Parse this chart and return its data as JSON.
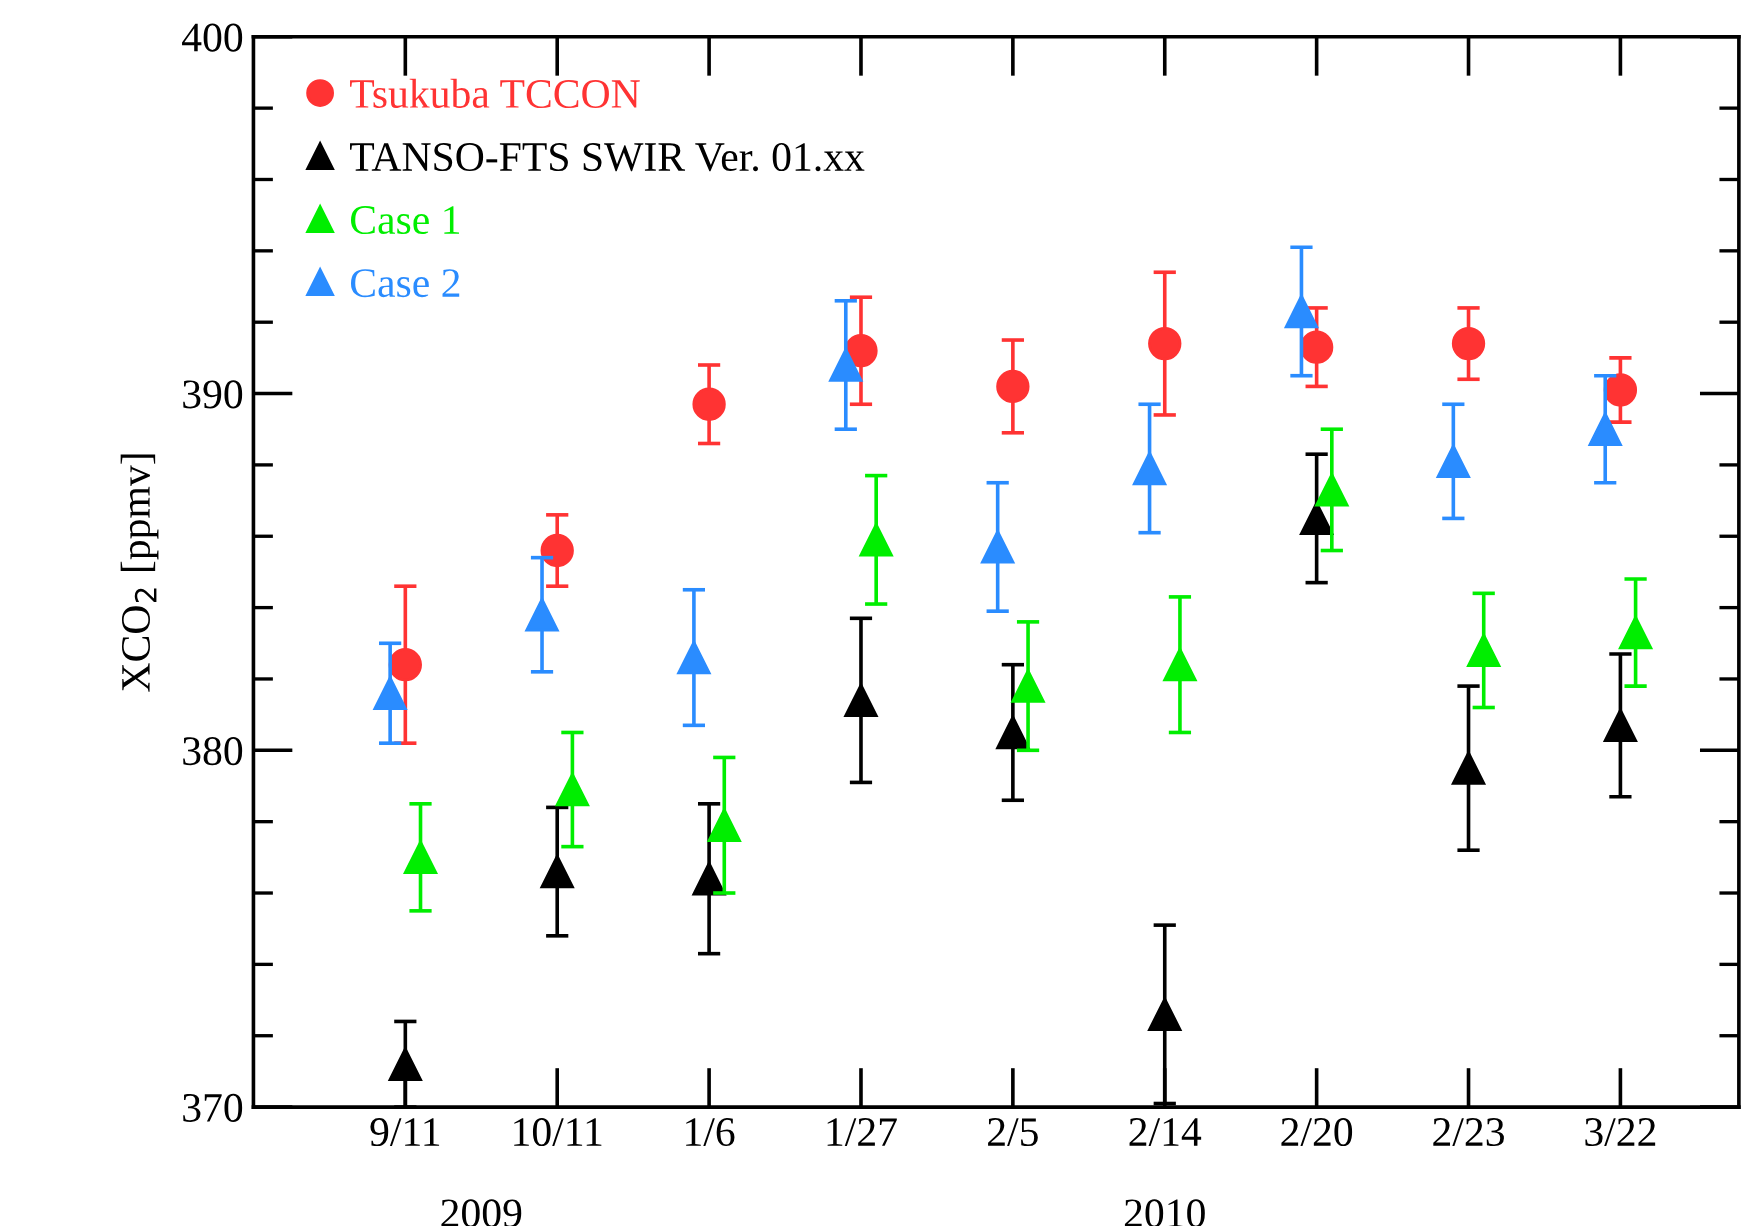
{
  "chart_data": {
    "type": "scatter",
    "ylabel": "XCO$_{2}$ [ppmv]",
    "categories": [
      "9/11",
      "10/11",
      "1/6",
      "1/27",
      "2/5",
      "2/14",
      "2/20",
      "2/23",
      "3/22"
    ],
    "series": [
      {
        "name": "Tsukuba TCCON",
        "color": "#ff3333",
        "marker": "circle",
        "values": [
          382.4,
          385.6,
          389.7,
          391.2,
          390.2,
          391.4,
          391.3,
          391.4,
          390.1
        ],
        "errors": [
          2.2,
          1.0,
          1.1,
          1.5,
          1.3,
          2.0,
          1.1,
          1.0,
          0.9
        ]
      },
      {
        "name": "TANSO-FTS SWIR Ver. 01.xx",
        "color": "#000000",
        "marker": "triangle",
        "values": [
          371.2,
          376.6,
          376.4,
          381.4,
          380.5,
          372.6,
          386.5,
          379.5,
          380.7
        ],
        "errors": [
          1.2,
          1.8,
          2.1,
          2.3,
          1.9,
          2.5,
          1.8,
          2.3,
          2.0
        ]
      },
      {
        "name": "Case 1",
        "color": "#00ee00",
        "marker": "triangle",
        "values": [
          377.0,
          378.9,
          377.9,
          385.9,
          381.8,
          382.4,
          387.3,
          382.8,
          383.3
        ],
        "errors": [
          1.5,
          1.6,
          1.9,
          1.8,
          1.8,
          1.9,
          1.7,
          1.6,
          1.5
        ]
      },
      {
        "name": "Case 2",
        "color": "#2a8cff",
        "marker": "triangle",
        "values": [
          381.6,
          383.8,
          382.6,
          390.8,
          385.7,
          387.9,
          392.3,
          388.1,
          389.0
        ],
        "errors": [
          1.4,
          1.6,
          1.9,
          1.8,
          1.8,
          1.8,
          1.8,
          1.6,
          1.5
        ]
      }
    ],
    "ylim": [
      370,
      400
    ],
    "yticks": [
      370,
      {
        "value": 372,
        "label": null
      },
      {
        "value": 374,
        "label": null
      },
      {
        "value": 376,
        "label": null
      },
      {
        "value": 378,
        "label": null
      },
      380,
      {
        "value": 382,
        "label": null
      },
      {
        "value": 384,
        "label": null
      },
      {
        "value": 386,
        "label": null
      },
      {
        "value": 388,
        "label": null
      },
      390,
      {
        "value": 392,
        "label": null
      },
      {
        "value": 394,
        "label": null
      },
      {
        "value": 396,
        "label": null
      },
      {
        "value": 398,
        "label": null
      },
      400
    ],
    "grid": false,
    "legend": "top left",
    "annotations": [
      "2009",
      "2010"
    ]
  }
}
